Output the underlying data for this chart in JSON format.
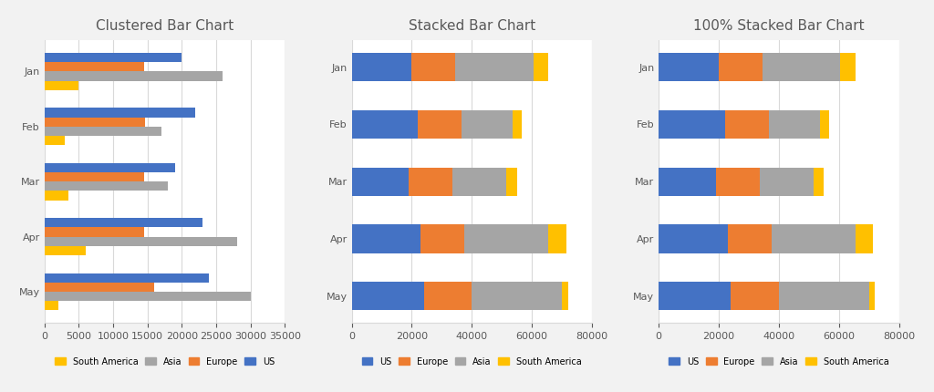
{
  "regions": [
    "US",
    "Europe",
    "Asia",
    "South America"
  ],
  "months": [
    "Jan",
    "Feb",
    "Mar",
    "Apr",
    "May"
  ],
  "data": {
    "US": [
      20000,
      22000,
      19000,
      23000,
      24000
    ],
    "Europe": [
      14500,
      14600,
      14500,
      14450,
      16000
    ],
    "Asia": [
      26000,
      17000,
      18000,
      28000,
      30000
    ],
    "South America": [
      5000,
      3000,
      3500,
      6000,
      2000
    ]
  },
  "colors": {
    "US": "#4472C4",
    "Europe": "#ED7D31",
    "Asia": "#A5A5A5",
    "South America": "#FFC000"
  },
  "titles": [
    "Clustered Bar Chart",
    "Stacked Bar Chart",
    "100% Stacked Bar Chart"
  ],
  "background_color": "#FFFFFF",
  "chart_bg": "#FFFFFF",
  "grid_color": "#D9D9D9",
  "text_color": "#595959",
  "title_color": "#595959",
  "title_fontsize": 11,
  "tick_fontsize": 8,
  "legend_fontsize": 8
}
